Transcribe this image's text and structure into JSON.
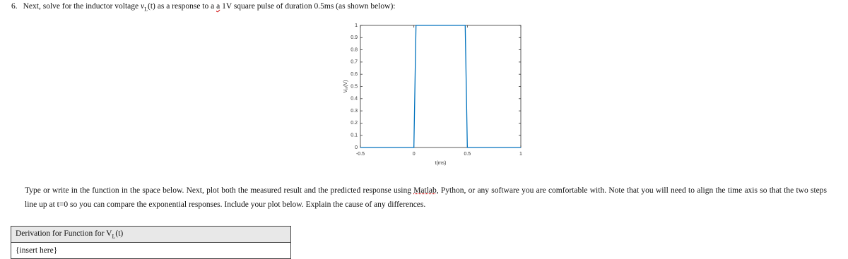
{
  "question": {
    "number": "6.",
    "text_before": "Next, solve for the inductor voltage ",
    "var": "v",
    "var_sub": "L",
    "var_arg": "(t)",
    "text_middle": " as a response to a ",
    "struck": "a",
    "text_after": " 1V square pulse of duration 0.5ms (as shown below):"
  },
  "figure": {
    "chart_data": {
      "type": "line",
      "xlabel": "t(ms)",
      "ylabel": "V",
      "ylabel_sub": "in",
      "ylabel_unit": "(V)",
      "series": [
        {
          "color": "#0072bd",
          "x": [
            -0.5,
            0,
            0.02,
            0.48,
            0.5,
            1
          ],
          "values": [
            0,
            0,
            1,
            1,
            0,
            0
          ]
        }
      ],
      "xlim": [
        -0.5,
        1
      ],
      "ylim": [
        0,
        1
      ],
      "xticks": [
        -0.5,
        0,
        0.5,
        1
      ],
      "yticks": [
        0,
        0.1,
        0.2,
        0.3,
        0.4,
        0.5,
        0.6,
        0.7,
        0.8,
        0.9,
        1
      ]
    }
  },
  "paragraph": {
    "before": "Type or write in the function in the space below. Next, plot both the measured result and the predicted response using ",
    "underlined": "Matlab",
    "after": ", Python, or any software you are comfortable with. Note that you will need to align the time axis so that the two steps line up at t=0 so you can compare the exponential responses. Include your plot below. Explain the cause of any differences."
  },
  "table": {
    "header": "Derivation for Function for V",
    "header_sub": "L",
    "header_arg": "(t)",
    "rows": [
      [
        "{insert here}"
      ]
    ]
  }
}
